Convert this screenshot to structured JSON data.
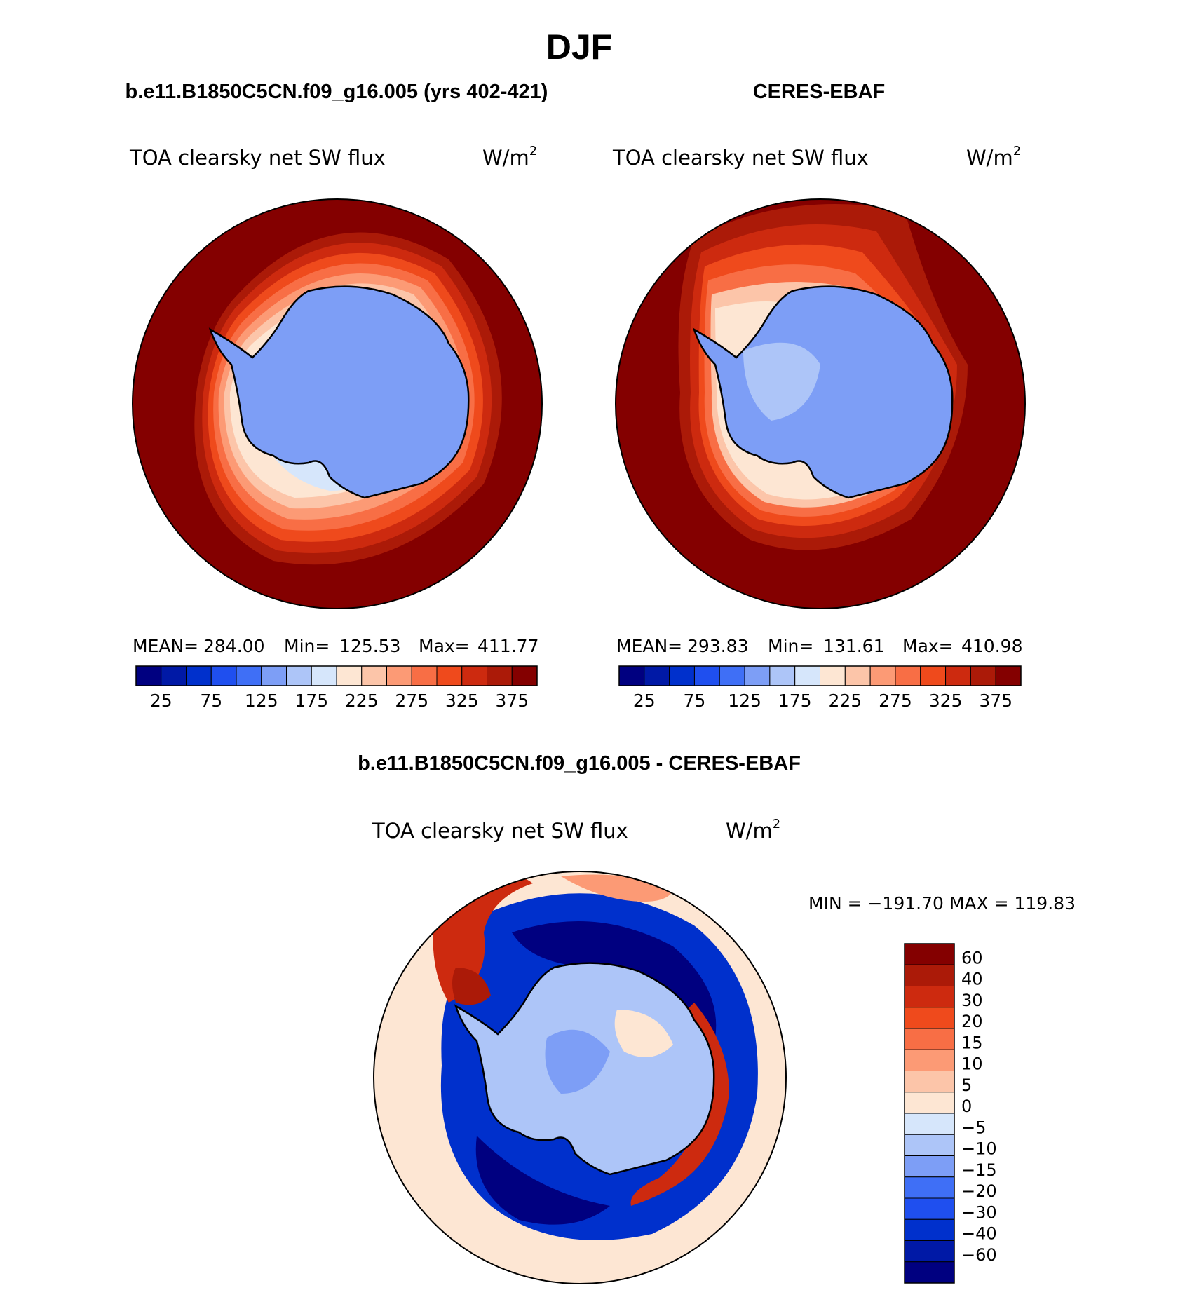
{
  "page_title": "DJF",
  "chart_data": [
    {
      "type": "heatmap",
      "projection": "south-polar-stereographic",
      "panel_title": "b.e11.B1850C5CN.f09_g16.005 (yrs 402-421)",
      "variable": "TOA clearsky net SW flux",
      "units_base": "W/m",
      "units_exp": "2",
      "stats": {
        "mean_label": "MEAN=",
        "mean": "284.00",
        "min_label": "Min=",
        "min": "125.53",
        "max_label": "Max=",
        "max": "411.77"
      },
      "colorbar": {
        "levels": [
          25,
          50,
          75,
          100,
          125,
          150,
          175,
          200,
          225,
          250,
          275,
          300,
          325,
          350,
          375
        ],
        "tick_labels": [
          "25",
          "75",
          "125",
          "175",
          "225",
          "275",
          "325",
          "375"
        ],
        "colors": [
          "#000080",
          "#0019a6",
          "#0030cc",
          "#1f4fef",
          "#3f6ff6",
          "#7d9ef6",
          "#adc5f8",
          "#d6e6fb",
          "#fde6d3",
          "#fcc5a9",
          "#fc9a75",
          "#f86e45",
          "#ef4a1c",
          "#cd2a0f",
          "#ab1a08",
          "#840000"
        ]
      }
    },
    {
      "type": "heatmap",
      "projection": "south-polar-stereographic",
      "panel_title": "CERES-EBAF",
      "variable": "TOA clearsky net SW flux",
      "units_base": "W/m",
      "units_exp": "2",
      "stats": {
        "mean_label": "MEAN=",
        "mean": "293.83",
        "min_label": "Min=",
        "min": "131.61",
        "max_label": "Max=",
        "max": "410.98"
      },
      "colorbar": {
        "levels": [
          25,
          50,
          75,
          100,
          125,
          150,
          175,
          200,
          225,
          250,
          275,
          300,
          325,
          350,
          375
        ],
        "tick_labels": [
          "25",
          "75",
          "125",
          "175",
          "225",
          "275",
          "325",
          "375"
        ],
        "colors": [
          "#000080",
          "#0019a6",
          "#0030cc",
          "#1f4fef",
          "#3f6ff6",
          "#7d9ef6",
          "#adc5f8",
          "#d6e6fb",
          "#fde6d3",
          "#fcc5a9",
          "#fc9a75",
          "#f86e45",
          "#ef4a1c",
          "#cd2a0f",
          "#ab1a08",
          "#840000"
        ]
      }
    },
    {
      "type": "heatmap",
      "projection": "south-polar-stereographic",
      "panel_title": "b.e11.B1850C5CN.f09_g16.005 - CERES-EBAF",
      "variable": "TOA clearsky net SW flux",
      "units_base": "W/m",
      "units_exp": "2",
      "stats_text": "MIN = −191.70 MAX = 119.83",
      "colorbar": {
        "levels": [
          60,
          40,
          30,
          20,
          15,
          10,
          5,
          0,
          -5,
          -10,
          -15,
          -20,
          -30,
          -40,
          -60
        ],
        "tick_labels": [
          "60",
          "40",
          "30",
          "20",
          "15",
          "10",
          "5",
          "0",
          "−5",
          "−10",
          "−15",
          "−20",
          "−30",
          "−40",
          "−60"
        ],
        "colors": [
          "#840000",
          "#ab1a08",
          "#cd2a0f",
          "#ef4a1c",
          "#f86e45",
          "#fc9a75",
          "#fcc5a9",
          "#fde6d3",
          "#d6e6fb",
          "#adc5f8",
          "#7d9ef6",
          "#3f6ff6",
          "#1f4fef",
          "#0030cc",
          "#0019a6",
          "#000080"
        ]
      }
    }
  ]
}
